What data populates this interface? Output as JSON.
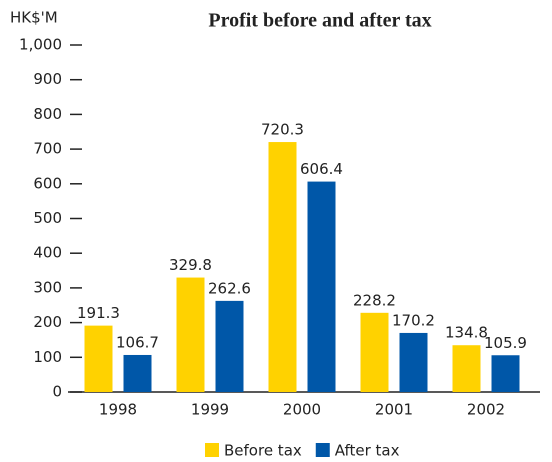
{
  "chart_data": {
    "type": "bar",
    "title": "Profit before and after tax",
    "y_axis_label": "HK$'M",
    "categories": [
      "1998",
      "1999",
      "2000",
      "2001",
      "2002"
    ],
    "series": [
      {
        "name": "Before tax",
        "color": "#ffd200",
        "values": [
          191.3,
          329.8,
          720.3,
          228.2,
          134.8
        ]
      },
      {
        "name": "After tax",
        "color": "#0057a8",
        "values": [
          106.7,
          262.6,
          606.4,
          170.2,
          105.9
        ]
      }
    ],
    "ylim": [
      0,
      1000
    ],
    "yticks": [
      0,
      100,
      200,
      300,
      400,
      500,
      600,
      700,
      800,
      900,
      {
        "value": 1000,
        "label": "1,000"
      }
    ],
    "legend": "bottom"
  }
}
